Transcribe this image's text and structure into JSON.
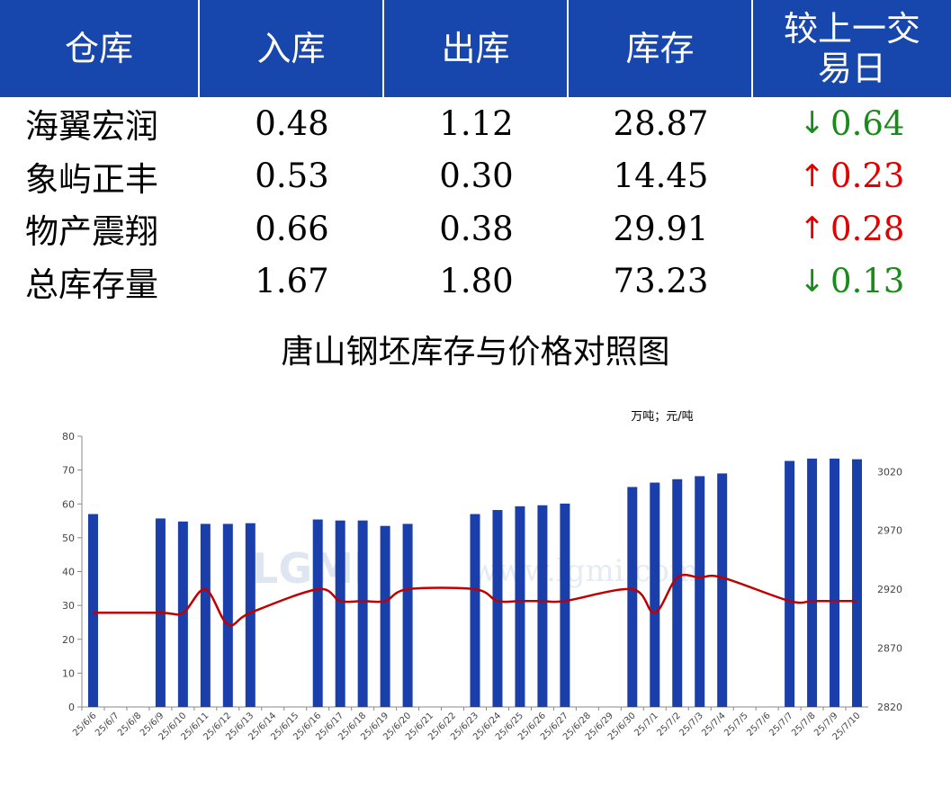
{
  "table": {
    "headers": [
      "仓库",
      "入库",
      "出库",
      "库存",
      "较上一交易日"
    ],
    "rows": [
      {
        "name": "海翼宏润",
        "in": "0.48",
        "out": "1.12",
        "stock": "28.87",
        "dir": "down",
        "arrow": "↓",
        "change": "0.64"
      },
      {
        "name": "象屿正丰",
        "in": "0.53",
        "out": "0.30",
        "stock": "14.45",
        "dir": "up",
        "arrow": "↑",
        "change": "0.23"
      },
      {
        "name": "物产震翔",
        "in": "0.66",
        "out": "0.38",
        "stock": "29.91",
        "dir": "up",
        "arrow": "↑",
        "change": "0.28"
      },
      {
        "name": "总库存量",
        "in": "1.67",
        "out": "1.80",
        "stock": "73.23",
        "dir": "down",
        "arrow": "↓",
        "change": "0.13"
      }
    ]
  },
  "colors": {
    "header_bg": "#1746ad",
    "up": "#e00000",
    "down": "#1a8a1a",
    "bar": "#1a3faa",
    "line": "#c00000"
  },
  "watermark": {
    "logo": "LGMI",
    "url": "www.lgmi.com"
  },
  "chart_data": {
    "type": "bar",
    "title": "唐山钢坯库存与价格对照图",
    "unit_label": "万吨；元/吨",
    "categories": [
      "25/6/6",
      "25/6/7",
      "25/6/8",
      "25/6/9",
      "25/6/10",
      "25/6/11",
      "25/6/12",
      "25/6/13",
      "25/6/14",
      "25/6/15",
      "25/6/16",
      "25/6/17",
      "25/6/18",
      "25/6/19",
      "25/6/20",
      "25/6/21",
      "25/6/22",
      "25/6/23",
      "25/6/24",
      "25/6/25",
      "25/6/26",
      "25/6/27",
      "25/6/28",
      "25/6/29",
      "25/6/30",
      "25/7/1",
      "25/7/2",
      "25/7/3",
      "25/7/4",
      "25/7/5",
      "25/7/6",
      "25/7/7",
      "25/7/8",
      "25/7/9",
      "25/7/10"
    ],
    "series": [
      {
        "axis": "left",
        "values": [
          57,
          null,
          null,
          55.7,
          54.8,
          54.1,
          54.1,
          54.3,
          null,
          null,
          55.4,
          55.1,
          55.1,
          53.5,
          54.1,
          null,
          null,
          57,
          58.2,
          59.3,
          59.6,
          60.1,
          null,
          null,
          65,
          66.3,
          67.3,
          68.2,
          69,
          null,
          null,
          72.7,
          73.4,
          73.4,
          73.2
        ]
      },
      {
        "axis": "right",
        "type": "line",
        "values": [
          2900,
          null,
          null,
          2900,
          2900,
          2920,
          2890,
          2900,
          null,
          null,
          2920,
          2910,
          2910,
          2910,
          2920,
          null,
          null,
          2920,
          2910,
          2910,
          2910,
          2910,
          null,
          null,
          2920,
          2900,
          2930,
          2930,
          2930,
          null,
          null,
          2910,
          2910,
          2910,
          2910
        ]
      }
    ],
    "y_left": {
      "min": 0,
      "max": 80,
      "ticks": [
        0,
        10,
        20,
        30,
        40,
        50,
        60,
        70,
        80
      ]
    },
    "y_right": {
      "min": 2820,
      "max": 3050,
      "ticks": [
        2820,
        2870,
        2920,
        2970,
        3020
      ]
    },
    "grid": false
  }
}
